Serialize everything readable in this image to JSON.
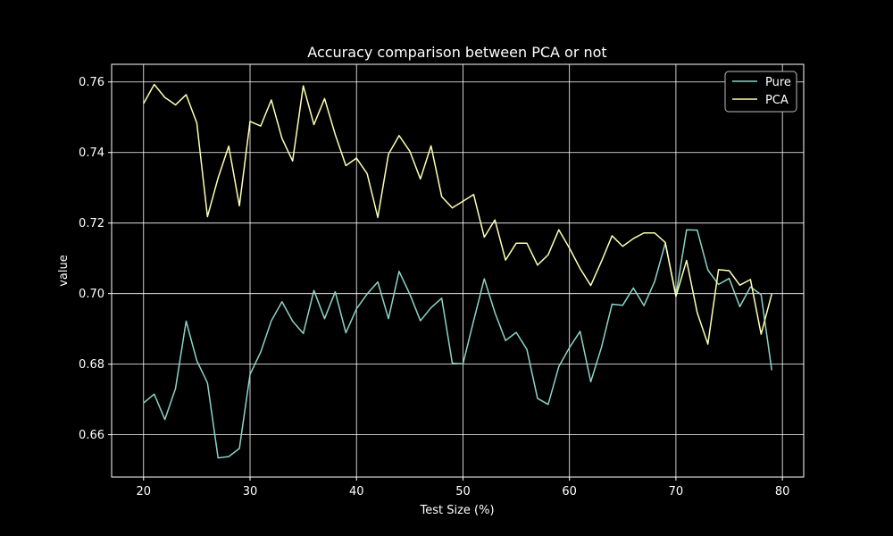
{
  "chart_data": {
    "type": "line",
    "title": "Accuracy comparison between PCA or not",
    "xlabel": "Test Size (%)",
    "ylabel": "value",
    "xlim": [
      17,
      82
    ],
    "ylim": [
      0.648,
      0.765
    ],
    "xticks": [
      20,
      30,
      40,
      50,
      60,
      70,
      80
    ],
    "yticks": [
      0.66,
      0.68,
      0.7,
      0.72,
      0.74,
      0.76
    ],
    "ytick_labels": [
      "0.66",
      "0.68",
      "0.70",
      "0.72",
      "0.74",
      "0.76"
    ],
    "grid": true,
    "legend_position": "top-right",
    "background": "#000000",
    "x": [
      20,
      21,
      22,
      23,
      24,
      25,
      26,
      27,
      28,
      29,
      30,
      31,
      32,
      33,
      34,
      35,
      36,
      37,
      38,
      39,
      40,
      41,
      42,
      43,
      44,
      45,
      46,
      47,
      48,
      49,
      50,
      51,
      52,
      53,
      54,
      55,
      56,
      57,
      58,
      59,
      60,
      61,
      62,
      63,
      64,
      65,
      66,
      67,
      68,
      69,
      70,
      71,
      72,
      73,
      74,
      75,
      76,
      77,
      78,
      79
    ],
    "series": [
      {
        "name": "Pure",
        "color": "#8dd3c7",
        "values": [
          0.669,
          0.6715,
          0.6643,
          0.6731,
          0.6922,
          0.681,
          0.6747,
          0.6534,
          0.6538,
          0.6561,
          0.6771,
          0.6834,
          0.6923,
          0.6977,
          0.6922,
          0.6887,
          0.7009,
          0.6929,
          0.7005,
          0.6889,
          0.6957,
          0.6999,
          0.7033,
          0.6929,
          0.7063,
          0.6999,
          0.6923,
          0.696,
          0.6987,
          0.6802,
          0.6801,
          0.6923,
          0.7042,
          0.6946,
          0.6867,
          0.689,
          0.6842,
          0.6703,
          0.6686,
          0.6793,
          0.6847,
          0.6893,
          0.675,
          0.6847,
          0.697,
          0.6967,
          0.7016,
          0.6966,
          0.7034,
          0.7143,
          0.6995,
          0.7181,
          0.718,
          0.7067,
          0.7026,
          0.7043,
          0.6963,
          0.7019,
          0.6997,
          0.6783
        ]
      },
      {
        "name": "PCA",
        "color": "#ffffb3",
        "values": [
          0.7539,
          0.7593,
          0.7556,
          0.7535,
          0.7564,
          0.7484,
          0.7218,
          0.7328,
          0.7418,
          0.7249,
          0.7488,
          0.7475,
          0.7549,
          0.744,
          0.7376,
          0.7589,
          0.7479,
          0.7553,
          0.7451,
          0.7363,
          0.7384,
          0.734,
          0.7216,
          0.7395,
          0.7448,
          0.7404,
          0.7325,
          0.7419,
          0.7275,
          0.7243,
          0.7262,
          0.7281,
          0.716,
          0.7209,
          0.7095,
          0.7143,
          0.7143,
          0.7081,
          0.711,
          0.7181,
          0.7129,
          0.7071,
          0.7023,
          0.7091,
          0.7164,
          0.7134,
          0.7156,
          0.7172,
          0.7172,
          0.7145,
          0.6992,
          0.7094,
          0.6946,
          0.6857,
          0.7068,
          0.7065,
          0.7024,
          0.704,
          0.6885,
          0.6999
        ]
      }
    ]
  }
}
